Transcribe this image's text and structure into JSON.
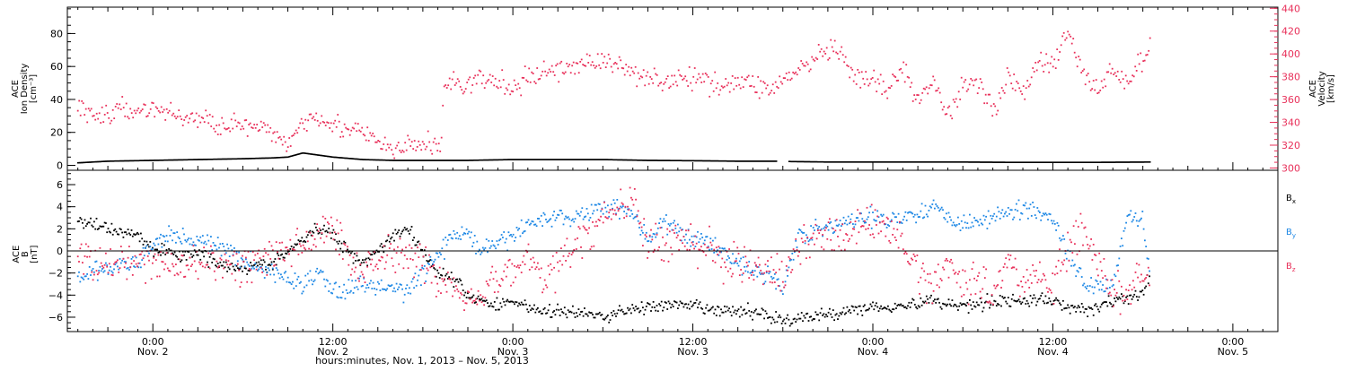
{
  "chart_data": [
    {
      "type": "line",
      "panel": "solar-wind",
      "left_axis": {
        "label_lines": [
          "ACE",
          "Ion Density",
          "[cm⁻³]"
        ],
        "ylim": [
          -3,
          96
        ],
        "ticks": [
          0,
          20,
          40,
          60,
          80
        ],
        "tick_labels": [
          "0",
          "20",
          "40",
          "60",
          "80"
        ]
      },
      "right_axis": {
        "label_lines": [
          "ACE",
          "Velocity",
          "[km/s]"
        ],
        "ylim": [
          298,
          441
        ],
        "ticks": [
          300,
          320,
          340,
          360,
          380,
          400,
          420,
          440
        ],
        "tick_labels": [
          "300",
          "320",
          "340",
          "360",
          "380",
          "400",
          "420",
          "440"
        ],
        "color": "#e8305a"
      },
      "series": [
        {
          "key": "ion_density",
          "axis": "left",
          "color": "#000000",
          "x_hours": [
            -5,
            -3,
            0,
            3,
            6,
            8,
            9,
            10,
            12,
            14,
            16,
            18,
            21,
            24,
            27,
            30,
            33,
            36,
            39,
            41.5,
            42.5,
            45,
            48,
            51,
            54,
            57,
            60,
            63,
            66.5
          ],
          "y": [
            1.5,
            2.5,
            3,
            3.5,
            4,
            4.5,
            5,
            7.5,
            5,
            3.5,
            3,
            3,
            3,
            3.5,
            3.5,
            3.5,
            3,
            2.8,
            2.5,
            2.5,
            2.3,
            2,
            2,
            2,
            2,
            1.8,
            1.8,
            1.8,
            2
          ]
        },
        {
          "key": "velocity",
          "axis": "right",
          "color": "#e8305a",
          "x_hours": [
            -5,
            -4,
            -2,
            0,
            2,
            4,
            6,
            8,
            9,
            10,
            11,
            12,
            14,
            15,
            16,
            17,
            18,
            19.2,
            19.4,
            20,
            21,
            22,
            24,
            26,
            27,
            29,
            30,
            32,
            33,
            34,
            36,
            38,
            40,
            41,
            42,
            43,
            44,
            45,
            46,
            47,
            48,
            49,
            50,
            51,
            52,
            53,
            54,
            55,
            56,
            57,
            58,
            59,
            60,
            61,
            62,
            63,
            64,
            65,
            66,
            66.5
          ],
          "y": [
            355,
            345,
            350,
            352,
            345,
            340,
            337,
            330,
            322,
            340,
            348,
            338,
            330,
            322,
            315,
            318,
            322,
            318,
            372,
            375,
            372,
            378,
            370,
            385,
            385,
            394,
            393,
            385,
            381,
            376,
            378,
            374,
            375,
            368,
            377,
            385,
            393,
            404,
            396,
            375,
            378,
            365,
            390,
            355,
            380,
            345,
            372,
            378,
            350,
            380,
            365,
            395,
            388,
            420,
            382,
            370,
            385,
            376,
            395,
            405
          ],
          "scatter": 8
        }
      ]
    },
    {
      "type": "line",
      "panel": "magnetic-field",
      "left_axis": {
        "label_lines": [
          "ACE",
          "B",
          "[nT]"
        ],
        "ylim": [
          -7.3,
          7.3
        ],
        "ticks": [
          -6,
          -4,
          -2,
          0,
          2,
          4,
          6
        ],
        "tick_labels": [
          "−6",
          "−4",
          "−2",
          "0",
          "2",
          "4",
          "6"
        ]
      },
      "zero_line": true,
      "series": [
        {
          "key": "Bx",
          "name": "B",
          "subscript": "x",
          "color": "#000000",
          "x_hours": [
            -5,
            -4,
            -3,
            -1,
            0,
            1,
            2,
            3,
            4,
            6,
            8,
            10,
            11,
            12,
            13,
            14,
            15,
            16,
            17,
            18,
            19,
            20,
            21,
            22,
            23,
            24,
            26,
            28,
            30,
            32,
            34,
            36,
            38,
            40,
            41,
            42,
            44,
            46,
            48,
            50,
            52,
            54,
            56,
            58,
            60,
            62,
            63,
            64,
            66,
            66.5
          ],
          "y": [
            2.5,
            2.5,
            2,
            1.5,
            0,
            0,
            -0.5,
            0,
            -1,
            -1.5,
            -1.2,
            1,
            2,
            1.5,
            0,
            -1,
            0,
            1.5,
            2,
            0,
            -2,
            -2.5,
            -4,
            -4.5,
            -5,
            -4.5,
            -5.5,
            -5.5,
            -6,
            -5.2,
            -5,
            -5,
            -5.5,
            -5.5,
            -5.8,
            -6.3,
            -6,
            -5.5,
            -5,
            -5,
            -4.5,
            -5,
            -4.5,
            -4.5,
            -4.5,
            -5.5,
            -5,
            -4.5,
            -4,
            -2
          ],
          "scatter": 0.5
        },
        {
          "key": "By",
          "name": "B",
          "subscript": "y",
          "color": "#1e88e5",
          "x_hours": [
            -5,
            -4,
            -3,
            -1,
            0,
            1,
            3,
            5,
            7,
            8,
            9,
            10,
            11,
            12,
            13,
            14,
            16,
            17,
            18,
            19,
            20,
            21,
            22,
            23,
            24,
            26,
            28,
            30,
            31,
            32,
            33,
            34,
            36,
            37,
            38,
            40,
            41,
            42,
            43,
            45,
            46,
            48,
            50,
            52,
            54,
            56,
            58,
            60,
            62,
            64,
            65,
            66,
            66.5
          ],
          "y": [
            -2.5,
            -2,
            -1.5,
            -1.2,
            0.5,
            1.5,
            1,
            0,
            -1.5,
            -2,
            -2.5,
            -3,
            -2,
            -3.5,
            -3.5,
            -3,
            -3.5,
            -3.5,
            -2,
            -0.5,
            1.5,
            1.5,
            0,
            0.5,
            1.5,
            3,
            3,
            4,
            4,
            3.5,
            1,
            2.5,
            1,
            1,
            0,
            -2,
            -2,
            -3.5,
            1.5,
            2,
            2.5,
            3,
            3,
            4,
            2.5,
            3,
            4,
            3,
            -3,
            -3,
            3.5,
            2.5,
            -2.5
          ],
          "scatter": 0.7
        },
        {
          "key": "Bz",
          "name": "B",
          "subscript": "z",
          "color": "#e8305a",
          "x_hours": [
            -5,
            -4,
            -3,
            -2,
            0,
            2,
            4,
            6,
            8,
            10,
            11,
            12,
            13,
            14,
            15,
            16,
            17,
            18,
            19,
            20,
            21,
            22,
            23,
            24,
            25,
            26,
            28,
            30,
            31,
            32,
            33,
            34,
            35,
            36,
            37,
            38,
            39,
            40,
            41,
            42,
            43,
            44,
            45,
            46,
            47,
            48,
            50,
            51,
            52,
            53,
            54,
            55,
            56,
            57,
            58,
            59,
            60,
            61,
            62,
            63,
            64,
            65,
            66,
            66.5
          ],
          "y": [
            0,
            -1,
            -1.5,
            -1.5,
            -1,
            -1.5,
            -1,
            -1.5,
            -0.5,
            0.5,
            1.5,
            2,
            0,
            -2,
            -0.5,
            0,
            0,
            -1,
            -2.5,
            -3.5,
            -4,
            -3.5,
            -2.5,
            -2,
            -0.5,
            -2.5,
            0,
            3,
            4,
            4.5,
            1,
            0,
            1.5,
            0.5,
            0.5,
            -1,
            -1,
            -1.5,
            -2,
            -2.5,
            0,
            1.5,
            2,
            1,
            2,
            2.5,
            1,
            -2,
            -3,
            -1,
            -3,
            -2,
            -4,
            -1,
            -3,
            -2,
            -3,
            0,
            2,
            -1.5,
            -3.5,
            -4,
            -2,
            -2
          ],
          "scatter": 1.4
        }
      ],
      "legend": [
        {
          "label": "B",
          "sub": "x",
          "color": "#000000"
        },
        {
          "label": "B",
          "sub": "y",
          "color": "#1e88e5"
        },
        {
          "label": "B",
          "sub": "z",
          "color": "#e8305a"
        }
      ],
      "legend_position": "right"
    }
  ],
  "x_axis": {
    "xlim_hours": [
      -5.7,
      75
    ],
    "ticks": [
      {
        "hour": 0,
        "time": "0:00",
        "date": "Nov. 2"
      },
      {
        "hour": 12,
        "time": "12:00",
        "date": "Nov. 2"
      },
      {
        "hour": 24,
        "time": "0:00",
        "date": "Nov. 3"
      },
      {
        "hour": 36,
        "time": "12:00",
        "date": "Nov. 3"
      },
      {
        "hour": 48,
        "time": "0:00",
        "date": "Nov. 4"
      },
      {
        "hour": 60,
        "time": "12:00",
        "date": "Nov. 4"
      },
      {
        "hour": 72,
        "time": "0:00",
        "date": "Nov. 5"
      }
    ],
    "minor_step_hours": 1,
    "label": "hours:minutes, Nov.  1, 2013 – Nov.  5, 2013"
  }
}
